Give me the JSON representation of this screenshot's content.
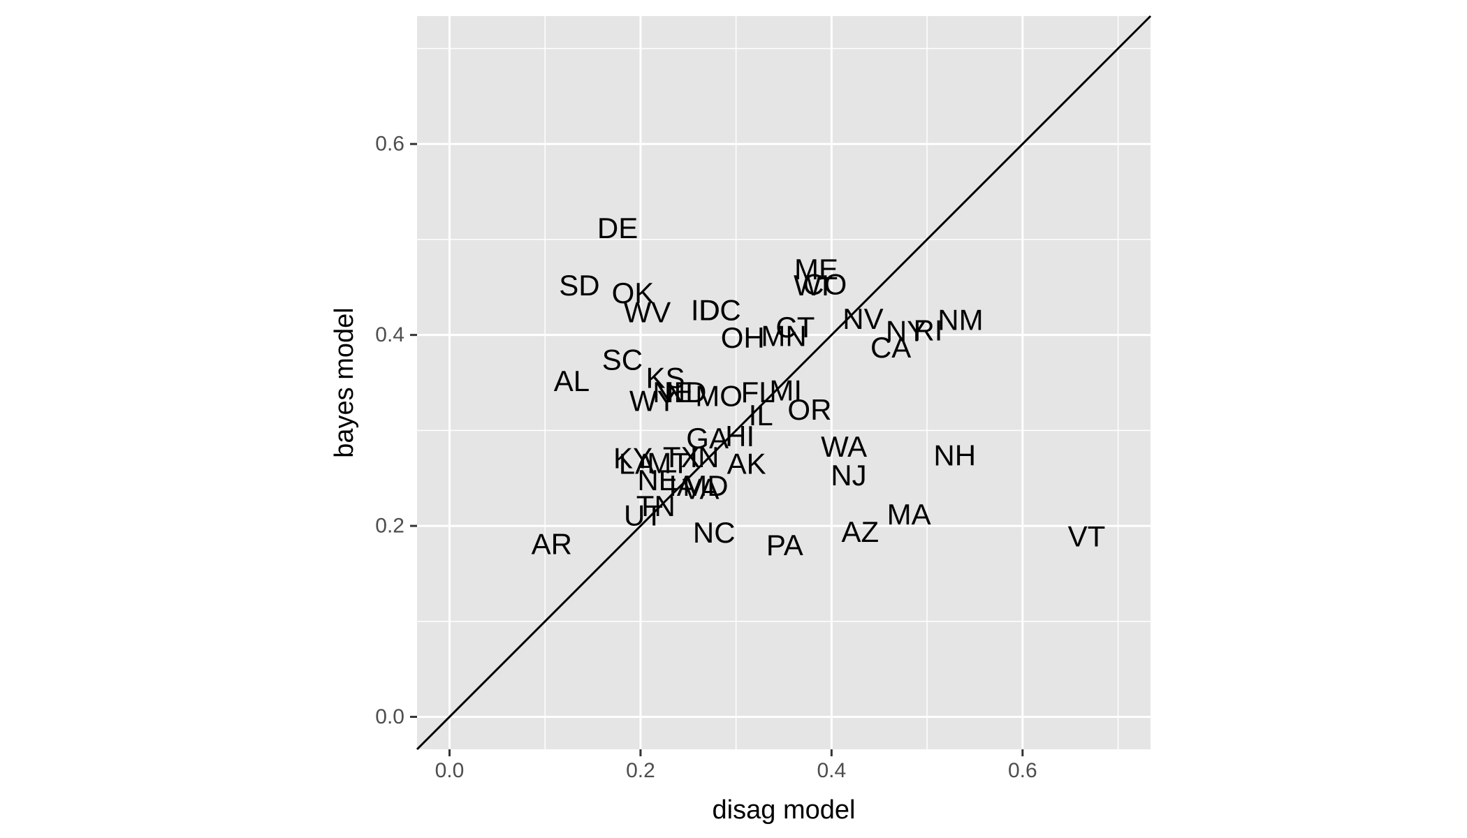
{
  "chart_data": {
    "type": "scatter",
    "title": "",
    "xlabel": "disag model",
    "ylabel": "bayes model",
    "xlim": [
      -0.034,
      0.734
    ],
    "ylim": [
      -0.034,
      0.734
    ],
    "x_ticks": [
      0.0,
      0.2,
      0.4,
      0.6
    ],
    "x_tick_labels": [
      "0.0",
      "0.2",
      "0.4",
      "0.6"
    ],
    "y_ticks": [
      0.0,
      0.2,
      0.4,
      0.6
    ],
    "y_tick_labels": [
      "0.0",
      "0.2",
      "0.4",
      "0.6"
    ],
    "minor_ticks": [
      0.1,
      0.3,
      0.5,
      0.7
    ],
    "grid": true,
    "reference_line": "y = x",
    "colors": {
      "panel": "#e5e5e5",
      "grid": "#ffffff",
      "line": "#000000",
      "text": "#000000",
      "tick_text": "#4d4d4d"
    },
    "points": [
      {
        "label": "DE",
        "x": 0.176,
        "y": 0.512
      },
      {
        "label": "SD",
        "x": 0.136,
        "y": 0.452
      },
      {
        "label": "OK",
        "x": 0.192,
        "y": 0.444
      },
      {
        "label": "WV",
        "x": 0.207,
        "y": 0.424
      },
      {
        "label": "ID",
        "x": 0.268,
        "y": 0.426
      },
      {
        "label": "DC",
        "x": 0.283,
        "y": 0.426
      },
      {
        "label": "ME",
        "x": 0.384,
        "y": 0.469
      },
      {
        "label": "WI",
        "x": 0.379,
        "y": 0.452
      },
      {
        "label": "CO",
        "x": 0.393,
        "y": 0.453
      },
      {
        "label": "NV",
        "x": 0.433,
        "y": 0.417
      },
      {
        "label": "NY",
        "x": 0.478,
        "y": 0.404
      },
      {
        "label": "RI",
        "x": 0.501,
        "y": 0.405
      },
      {
        "label": "NM",
        "x": 0.535,
        "y": 0.416
      },
      {
        "label": "CA",
        "x": 0.462,
        "y": 0.387
      },
      {
        "label": "CT",
        "x": 0.362,
        "y": 0.408
      },
      {
        "label": "MN",
        "x": 0.35,
        "y": 0.399
      },
      {
        "label": "OH",
        "x": 0.307,
        "y": 0.397
      },
      {
        "label": "SC",
        "x": 0.181,
        "y": 0.374
      },
      {
        "label": "KS",
        "x": 0.226,
        "y": 0.355
      },
      {
        "label": "AL",
        "x": 0.128,
        "y": 0.352
      },
      {
        "label": "NE",
        "x": 0.234,
        "y": 0.34
      },
      {
        "label": "ND",
        "x": 0.247,
        "y": 0.34
      },
      {
        "label": "WY",
        "x": 0.213,
        "y": 0.331
      },
      {
        "label": "MO",
        "x": 0.282,
        "y": 0.336
      },
      {
        "label": "FL",
        "x": 0.323,
        "y": 0.34
      },
      {
        "label": "MI",
        "x": 0.352,
        "y": 0.342
      },
      {
        "label": "IL",
        "x": 0.326,
        "y": 0.316
      },
      {
        "label": "OR",
        "x": 0.377,
        "y": 0.322
      },
      {
        "label": "GA",
        "x": 0.27,
        "y": 0.292
      },
      {
        "label": "HI",
        "x": 0.304,
        "y": 0.294
      },
      {
        "label": "WA",
        "x": 0.413,
        "y": 0.283
      },
      {
        "label": "NH",
        "x": 0.529,
        "y": 0.274
      },
      {
        "label": "KY",
        "x": 0.192,
        "y": 0.271
      },
      {
        "label": "LA",
        "x": 0.196,
        "y": 0.265
      },
      {
        "label": "MT",
        "x": 0.229,
        "y": 0.266
      },
      {
        "label": "TX",
        "x": 0.243,
        "y": 0.272
      },
      {
        "label": "IN",
        "x": 0.267,
        "y": 0.272
      },
      {
        "label": "AK",
        "x": 0.311,
        "y": 0.265
      },
      {
        "label": "NJ",
        "x": 0.418,
        "y": 0.253
      },
      {
        "label": "NE",
        "x": 0.218,
        "y": 0.248
      },
      {
        "label": "IA",
        "x": 0.244,
        "y": 0.242
      },
      {
        "label": "VA",
        "x": 0.263,
        "y": 0.239
      },
      {
        "label": "MD",
        "x": 0.268,
        "y": 0.242
      },
      {
        "label": "TN",
        "x": 0.216,
        "y": 0.221
      },
      {
        "label": "UT",
        "x": 0.203,
        "y": 0.211
      },
      {
        "label": "MA",
        "x": 0.481,
        "y": 0.212
      },
      {
        "label": "NC",
        "x": 0.277,
        "y": 0.193
      },
      {
        "label": "AZ",
        "x": 0.43,
        "y": 0.194
      },
      {
        "label": "VT",
        "x": 0.667,
        "y": 0.189
      },
      {
        "label": "PA",
        "x": 0.351,
        "y": 0.18
      },
      {
        "label": "AR",
        "x": 0.107,
        "y": 0.181
      }
    ]
  }
}
